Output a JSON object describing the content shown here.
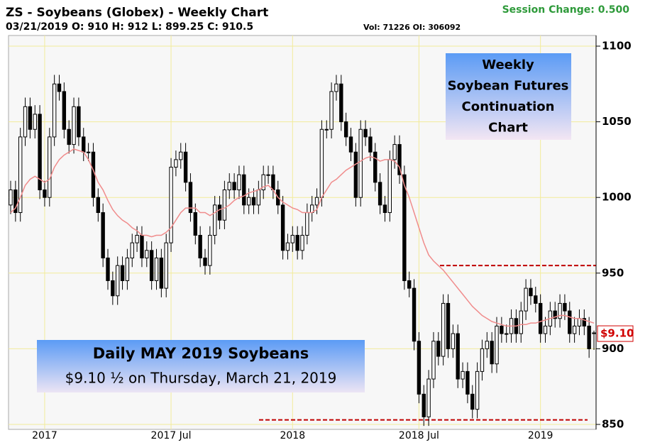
{
  "chart_data": {
    "type": "candlestick",
    "title": "ZS - Soybeans (Globex) - Weekly Chart",
    "session_change": "Session Change: 0.500",
    "info": "03/21/2019 O: 910 H: 912 L: 899.25 C: 910.5",
    "volume_info": "Vol: 71226 OI: 306092",
    "box_lines": [
      "Weekly",
      "Soybean Futures",
      "Continuation",
      "Chart"
    ],
    "banner_title": "Daily MAY 2019 Soybeans",
    "banner_subtitle": "$9.10 ½ on Thursday, March 21, 2019",
    "price_label": "$9.10",
    "price_label_value": 910,
    "reference_lines": [
      955,
      853
    ],
    "reference_color": "#c00000",
    "up_color": "#ffffff",
    "down_color": "#000000",
    "ma_color": "#f08c8c",
    "grid": true,
    "ylim": [
      850,
      1100
    ],
    "yticks": [
      850,
      900,
      950,
      1000,
      1050,
      1100
    ],
    "categories": [
      null,
      null,
      null,
      null,
      null,
      null,
      null,
      "2017",
      null,
      null,
      null,
      null,
      null,
      null,
      null,
      null,
      null,
      null,
      null,
      null,
      null,
      null,
      null,
      null,
      null,
      null,
      null,
      null,
      null,
      null,
      null,
      null,
      null,
      "2017 Jul",
      null,
      null,
      null,
      null,
      null,
      null,
      null,
      null,
      null,
      null,
      null,
      null,
      null,
      null,
      null,
      null,
      null,
      null,
      null,
      null,
      null,
      null,
      null,
      null,
      "2018",
      null,
      null,
      null,
      null,
      null,
      null,
      null,
      null,
      null,
      null,
      null,
      null,
      null,
      null,
      null,
      null,
      null,
      null,
      null,
      null,
      null,
      null,
      null,
      null,
      null,
      "2018 Jul",
      null,
      null,
      null,
      null,
      null,
      null,
      null,
      null,
      null,
      null,
      null,
      null,
      null,
      null,
      null,
      null,
      null,
      null,
      null,
      null,
      null,
      null,
      null,
      null,
      "2019",
      null,
      null,
      null,
      null,
      null,
      null,
      null,
      null,
      null,
      null,
      null
    ],
    "open": [
      995,
      1005,
      990,
      1040,
      1060,
      1045,
      1055,
      1005,
      1000,
      1040,
      1075,
      1070,
      1045,
      1035,
      1060,
      1040,
      1030,
      1030,
      1000,
      990,
      960,
      945,
      935,
      955,
      945,
      960,
      970,
      975,
      960,
      965,
      945,
      960,
      940,
      970,
      1020,
      1025,
      1030,
      1010,
      990,
      975,
      960,
      955,
      975,
      995,
      985,
      1005,
      1010,
      1005,
      1015,
      995,
      1000,
      995,
      1005,
      1015,
      1015,
      1005,
      995,
      965,
      970,
      975,
      965,
      975,
      990,
      995,
      1000,
      1045,
      1045,
      1070,
      1075,
      1050,
      1040,
      1030,
      1000,
      1045,
      1040,
      1030,
      1010,
      995,
      990,
      1025,
      1035,
      1015,
      945,
      940,
      905,
      870,
      855,
      880,
      905,
      895,
      930,
      900,
      910,
      880,
      885,
      870,
      860,
      885,
      900,
      905,
      890,
      915,
      910,
      910,
      920,
      910,
      925,
      940,
      935,
      930,
      910,
      915,
      925,
      920,
      930,
      925,
      910,
      915,
      920,
      915,
      910
    ],
    "high": [
      1011,
      1011,
      1046,
      1066,
      1066,
      1061,
      1061,
      1011,
      1046,
      1081,
      1081,
      1076,
      1051,
      1066,
      1066,
      1046,
      1036,
      1036,
      1006,
      996,
      966,
      951,
      961,
      961,
      966,
      976,
      981,
      981,
      971,
      971,
      966,
      966,
      976,
      1026,
      1031,
      1036,
      1036,
      1016,
      996,
      981,
      966,
      981,
      1001,
      1001,
      1011,
      1016,
      1016,
      1021,
      1021,
      1006,
      1006,
      1011,
      1021,
      1021,
      1021,
      1011,
      1001,
      976,
      981,
      981,
      981,
      996,
      1001,
      1006,
      1051,
      1051,
      1076,
      1081,
      1081,
      1056,
      1046,
      1036,
      1051,
      1051,
      1046,
      1036,
      1016,
      1001,
      1031,
      1041,
      1041,
      1021,
      951,
      946,
      911,
      876,
      886,
      911,
      911,
      936,
      936,
      916,
      916,
      891,
      891,
      876,
      891,
      906,
      911,
      911,
      921,
      921,
      916,
      926,
      926,
      931,
      946,
      946,
      941,
      936,
      921,
      931,
      931,
      936,
      936,
      931,
      921,
      926,
      926,
      921,
      912
    ],
    "low": [
      989,
      984,
      984,
      1034,
      1039,
      1039,
      999,
      994,
      994,
      1034,
      1064,
      1039,
      1029,
      1029,
      1034,
      1024,
      1024,
      994,
      984,
      954,
      939,
      929,
      929,
      939,
      939,
      954,
      964,
      954,
      954,
      939,
      939,
      934,
      934,
      964,
      1014,
      1019,
      1004,
      984,
      969,
      954,
      949,
      949,
      969,
      979,
      979,
      999,
      999,
      999,
      989,
      989,
      989,
      989,
      999,
      1009,
      999,
      989,
      959,
      959,
      964,
      959,
      959,
      969,
      984,
      989,
      994,
      1039,
      1039,
      1064,
      1044,
      1034,
      1024,
      994,
      994,
      1034,
      1024,
      1004,
      989,
      984,
      984,
      1019,
      1009,
      939,
      934,
      899,
      864,
      849,
      849,
      874,
      889,
      889,
      894,
      894,
      874,
      874,
      864,
      854,
      854,
      879,
      894,
      884,
      884,
      904,
      904,
      904,
      904,
      904,
      919,
      929,
      924,
      904,
      904,
      909,
      914,
      914,
      919,
      904,
      904,
      909,
      909,
      894,
      899.25
    ],
    "close": [
      1005,
      990,
      1040,
      1060,
      1045,
      1055,
      1005,
      1000,
      1040,
      1075,
      1070,
      1045,
      1035,
      1060,
      1040,
      1030,
      1030,
      1000,
      990,
      960,
      945,
      935,
      955,
      945,
      960,
      970,
      975,
      960,
      965,
      945,
      960,
      940,
      970,
      1020,
      1025,
      1030,
      1010,
      990,
      975,
      960,
      955,
      975,
      995,
      985,
      1005,
      1010,
      1005,
      1015,
      995,
      1000,
      995,
      1005,
      1015,
      1015,
      1005,
      995,
      965,
      970,
      975,
      965,
      975,
      990,
      995,
      1000,
      1045,
      1045,
      1070,
      1075,
      1050,
      1040,
      1030,
      1000,
      1045,
      1040,
      1030,
      1010,
      995,
      990,
      1025,
      1035,
      1015,
      945,
      940,
      905,
      870,
      855,
      880,
      905,
      895,
      930,
      900,
      910,
      880,
      885,
      870,
      860,
      885,
      900,
      905,
      890,
      915,
      910,
      910,
      920,
      910,
      925,
      940,
      935,
      930,
      910,
      915,
      925,
      920,
      930,
      925,
      910,
      915,
      920,
      915,
      900,
      910.5
    ],
    "moving_average": [
      990,
      993,
      1000,
      1008,
      1012,
      1014,
      1012,
      1010,
      1012,
      1020,
      1025,
      1028,
      1030,
      1032,
      1031,
      1030,
      1025,
      1018,
      1010,
      1005,
      998,
      992,
      988,
      985,
      983,
      980,
      978,
      975,
      975,
      974,
      975,
      975,
      977,
      980,
      985,
      990,
      993,
      993,
      993,
      990,
      990,
      988,
      990,
      992,
      993,
      995,
      998,
      1000,
      1001,
      1003,
      1004,
      1005,
      1007,
      1008,
      1005,
      1000,
      997,
      995,
      993,
      992,
      990,
      990,
      990,
      992,
      1000,
      1005,
      1010,
      1012,
      1015,
      1018,
      1020,
      1022,
      1024,
      1026,
      1027,
      1026,
      1024,
      1025,
      1025,
      1024,
      1020,
      1008,
      1000,
      990,
      980,
      970,
      962,
      958,
      955,
      952,
      948,
      944,
      940,
      936,
      932,
      928,
      925,
      922,
      920,
      918,
      917,
      916,
      915,
      915,
      915,
      916,
      916,
      917,
      917,
      918,
      919,
      920,
      921,
      922,
      922,
      921,
      920,
      920,
      919,
      918,
      917
    ]
  }
}
